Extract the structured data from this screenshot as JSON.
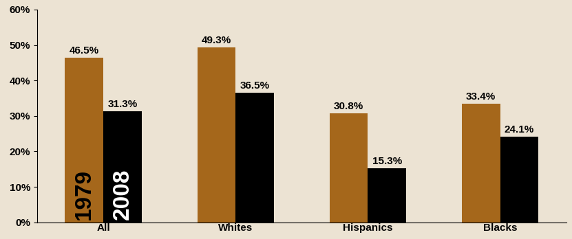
{
  "chart_data": {
    "type": "bar",
    "categories": [
      "All",
      "Whites",
      "Hispanics",
      "Blacks"
    ],
    "series": [
      {
        "name": "1979",
        "color": "#a5671b",
        "values": [
          46.5,
          49.3,
          30.8,
          33.4
        ],
        "value_labels": [
          "46.5%",
          "49.3%",
          "30.8%",
          "33.4%"
        ]
      },
      {
        "name": "2008",
        "color": "#000000",
        "values": [
          31.3,
          36.5,
          15.3,
          24.1
        ],
        "value_labels": [
          "31.3%",
          "36.5%",
          "15.3%",
          "24.1%"
        ]
      }
    ],
    "ylim": [
      0,
      60
    ],
    "yticks": [
      {
        "value": 0,
        "label": "0%"
      },
      {
        "value": 10,
        "label": "10%"
      },
      {
        "value": 20,
        "label": "20%"
      },
      {
        "value": 30,
        "label": "30%"
      },
      {
        "value": 40,
        "label": "40%"
      },
      {
        "value": 50,
        "label": "50%"
      },
      {
        "value": 60,
        "label": "60%"
      }
    ],
    "data_labels": true,
    "grid": false
  }
}
